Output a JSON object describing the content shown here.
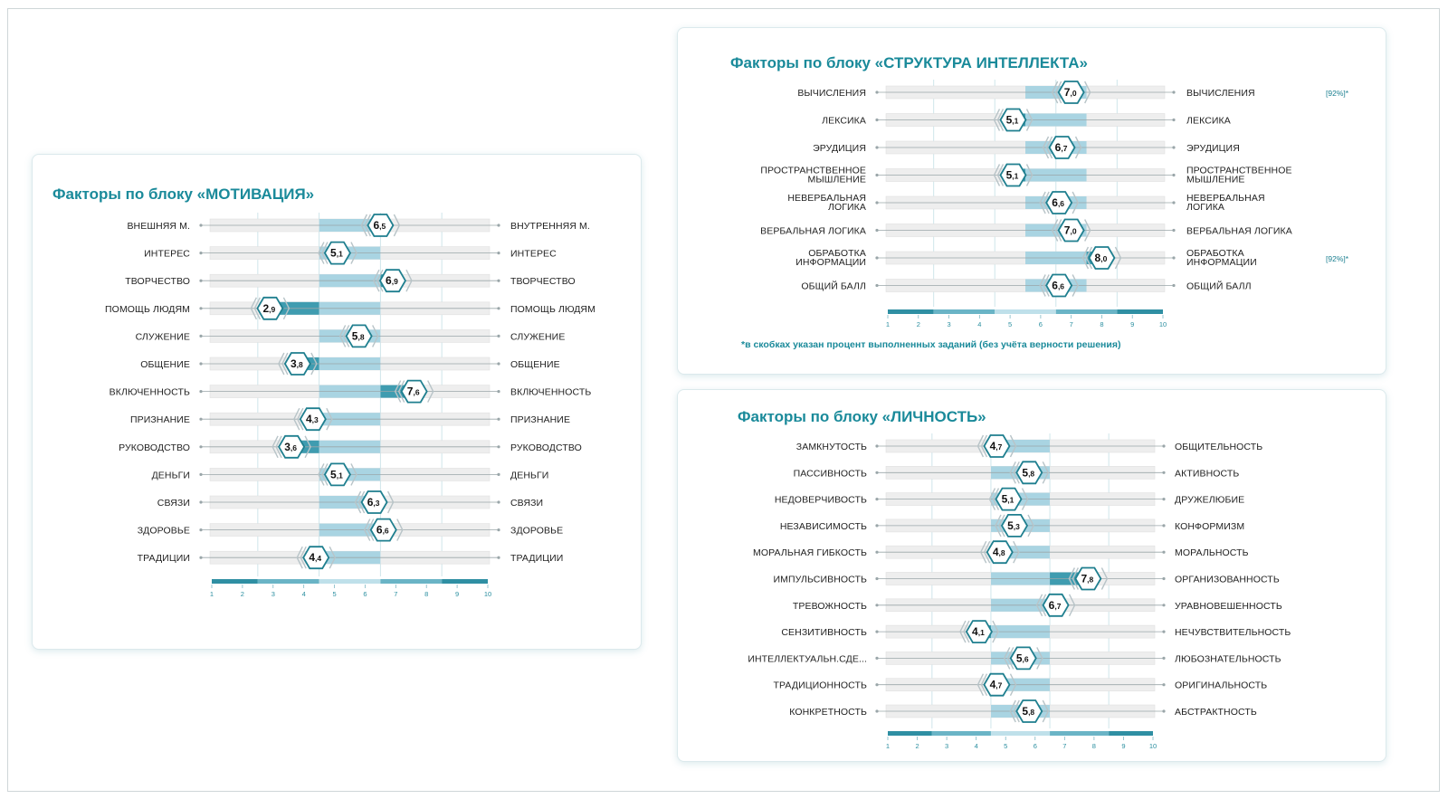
{
  "panels": {
    "motivation": {
      "title": "Факторы по блоку «МОТИВАЦИЯ»"
    },
    "intellect": {
      "title": "Факторы по блоку «СТРУКТУРА ИНТЕЛЛЕКТА»",
      "footnote": "*в скобках указан процент выполненных заданий (без учёта верности решения)"
    },
    "personality": {
      "title": "Факторы по блоку «ЛИЧНОСТЬ»"
    }
  },
  "colors": {
    "accent": "#1a8a9a",
    "band_light": "#a9d4e2",
    "band_dark": "#3f9cb0",
    "row_bg": "#eeeeee",
    "marker_stroke": "#1f7f8f",
    "chevron": "#b8c4c8"
  },
  "chart_data": [
    {
      "type": "bar",
      "panel": "motivation",
      "scale_ticks": [
        "1",
        "2",
        "3",
        "4",
        "5",
        "6",
        "7",
        "8",
        "9",
        "10"
      ],
      "xlim": [
        1,
        10
      ],
      "norm_band": [
        4.5,
        6.5
      ],
      "rows": [
        {
          "left": "ВНЕШНЯЯ М.",
          "right": "ВНУТРЕННЯЯ М.",
          "value": 6.5,
          "int": "6",
          "dec": ",5"
        },
        {
          "left": "ИНТЕРЕС",
          "right": "ИНТЕРЕС",
          "value": 5.1,
          "int": "5",
          "dec": ",1"
        },
        {
          "left": "ТВОРЧЕСТВО",
          "right": "ТВОРЧЕСТВО",
          "value": 6.9,
          "int": "6",
          "dec": ",9"
        },
        {
          "left": "ПОМОЩЬ ЛЮДЯМ",
          "right": "ПОМОЩЬ ЛЮДЯМ",
          "value": 2.9,
          "int": "2",
          "dec": ",9"
        },
        {
          "left": "СЛУЖЕНИЕ",
          "right": "СЛУЖЕНИЕ",
          "value": 5.8,
          "int": "5",
          "dec": ",8"
        },
        {
          "left": "ОБЩЕНИЕ",
          "right": "ОБЩЕНИЕ",
          "value": 3.8,
          "int": "3",
          "dec": ",8"
        },
        {
          "left": "ВКЛЮЧЕННОСТЬ",
          "right": "ВКЛЮЧЕННОСТЬ",
          "value": 7.6,
          "int": "7",
          "dec": ",6"
        },
        {
          "left": "ПРИЗНАНИЕ",
          "right": "ПРИЗНАНИЕ",
          "value": 4.3,
          "int": "4",
          "dec": ",3"
        },
        {
          "left": "РУКОВОДСТВО",
          "right": "РУКОВОДСТВО",
          "value": 3.6,
          "int": "3",
          "dec": ",6"
        },
        {
          "left": "ДЕНЬГИ",
          "right": "ДЕНЬГИ",
          "value": 5.1,
          "int": "5",
          "dec": ",1"
        },
        {
          "left": "СВЯЗИ",
          "right": "СВЯЗИ",
          "value": 6.3,
          "int": "6",
          "dec": ",3"
        },
        {
          "left": "ЗДОРОВЬЕ",
          "right": "ЗДОРОВЬЕ",
          "value": 6.6,
          "int": "6",
          "dec": ",6"
        },
        {
          "left": "ТРАДИЦИИ",
          "right": "ТРАДИЦИИ",
          "value": 4.4,
          "int": "4",
          "dec": ",4"
        }
      ]
    },
    {
      "type": "bar",
      "panel": "intellect",
      "scale_ticks": [
        "1",
        "2",
        "3",
        "4",
        "5",
        "6",
        "7",
        "8",
        "9",
        "10"
      ],
      "xlim": [
        1,
        10
      ],
      "norm_band": [
        5.5,
        7.5
      ],
      "rows": [
        {
          "left": "ВЫЧИСЛЕНИЯ",
          "right": "ВЫЧИСЛЕНИЯ",
          "value": 7.0,
          "int": "7",
          "dec": ",0",
          "note": "[92%]*"
        },
        {
          "left": "ЛЕКСИКА",
          "right": "ЛЕКСИКА",
          "value": 5.1,
          "int": "5",
          "dec": ",1"
        },
        {
          "left": "ЭРУДИЦИЯ",
          "right": "ЭРУДИЦИЯ",
          "value": 6.7,
          "int": "6",
          "dec": ",7"
        },
        {
          "left": "ПРОСТРАНСТВЕННОЕ\nМЫШЛЕНИЕ",
          "right": "ПРОСТРАНСТВЕННОЕ\nМЫШЛЕНИЕ",
          "value": 5.1,
          "int": "5",
          "dec": ",1"
        },
        {
          "left": "НЕВЕРБАЛЬНАЯ\nЛОГИКА",
          "right": "НЕВЕРБАЛЬНАЯ\nЛОГИКА",
          "value": 6.6,
          "int": "6",
          "dec": ",6"
        },
        {
          "left": "ВЕРБАЛЬНАЯ ЛОГИКА",
          "right": "ВЕРБАЛЬНАЯ ЛОГИКА",
          "value": 7.0,
          "int": "7",
          "dec": ",0"
        },
        {
          "left": "ОБРАБОТКА\nИНФОРМАЦИИ",
          "right": "ОБРАБОТКА\nИНФОРМАЦИИ",
          "value": 8.0,
          "int": "8",
          "dec": ",0",
          "note": "[92%]*"
        },
        {
          "left": "ОБЩИЙ БАЛЛ",
          "right": "ОБЩИЙ БАЛЛ",
          "value": 6.6,
          "int": "6",
          "dec": ",6"
        }
      ]
    },
    {
      "type": "bar",
      "panel": "personality",
      "scale_ticks": [
        "1",
        "2",
        "3",
        "4",
        "5",
        "6",
        "7",
        "8",
        "9",
        "10"
      ],
      "xlim": [
        1,
        10
      ],
      "norm_band": [
        4.5,
        6.5
      ],
      "rows": [
        {
          "left": "ЗАМКНУТОСТЬ",
          "right": "ОБЩИТЕЛЬНОСТЬ",
          "value": 4.7,
          "int": "4",
          "dec": ",7"
        },
        {
          "left": "ПАССИВНОСТЬ",
          "right": "АКТИВНОСТЬ",
          "value": 5.8,
          "int": "5",
          "dec": ",8"
        },
        {
          "left": "НЕДОВЕРЧИВОСТЬ",
          "right": "ДРУЖЕЛЮБИЕ",
          "value": 5.1,
          "int": "5",
          "dec": ",1"
        },
        {
          "left": "НЕЗАВИСИМОСТЬ",
          "right": "КОНФОРМИЗМ",
          "value": 5.3,
          "int": "5",
          "dec": ",3"
        },
        {
          "left": "МОРАЛЬНАЯ ГИБКОСТЬ",
          "right": "МОРАЛЬНОСТЬ",
          "value": 4.8,
          "int": "4",
          "dec": ",8"
        },
        {
          "left": "ИМПУЛЬСИВНОСТЬ",
          "right": "ОРГАНИЗОВАННОСТЬ",
          "value": 7.8,
          "int": "7",
          "dec": ",8"
        },
        {
          "left": "ТРЕВОЖНОСТЬ",
          "right": "УРАВНОВЕШЕННОСТЬ",
          "value": 6.7,
          "int": "6",
          "dec": ",7"
        },
        {
          "left": "СЕНЗИТИВНОСТЬ",
          "right": "НЕЧУВСТВИТЕЛЬНОСТЬ",
          "value": 4.1,
          "int": "4",
          "dec": ",1"
        },
        {
          "left": "ИНТЕЛЛЕКТУАЛЬН.СДЕ...",
          "right": "ЛЮБОЗНАТЕЛЬНОСТЬ",
          "value": 5.6,
          "int": "5",
          "dec": ",6"
        },
        {
          "left": "ТРАДИЦИОННОСТЬ",
          "right": "ОРИГИНАЛЬНОСТЬ",
          "value": 4.7,
          "int": "4",
          "dec": ",7"
        },
        {
          "left": "КОНКРЕТНОСТЬ",
          "right": "АБСТРАКТНОСТЬ",
          "value": 5.8,
          "int": "5",
          "dec": ",8"
        }
      ]
    }
  ]
}
